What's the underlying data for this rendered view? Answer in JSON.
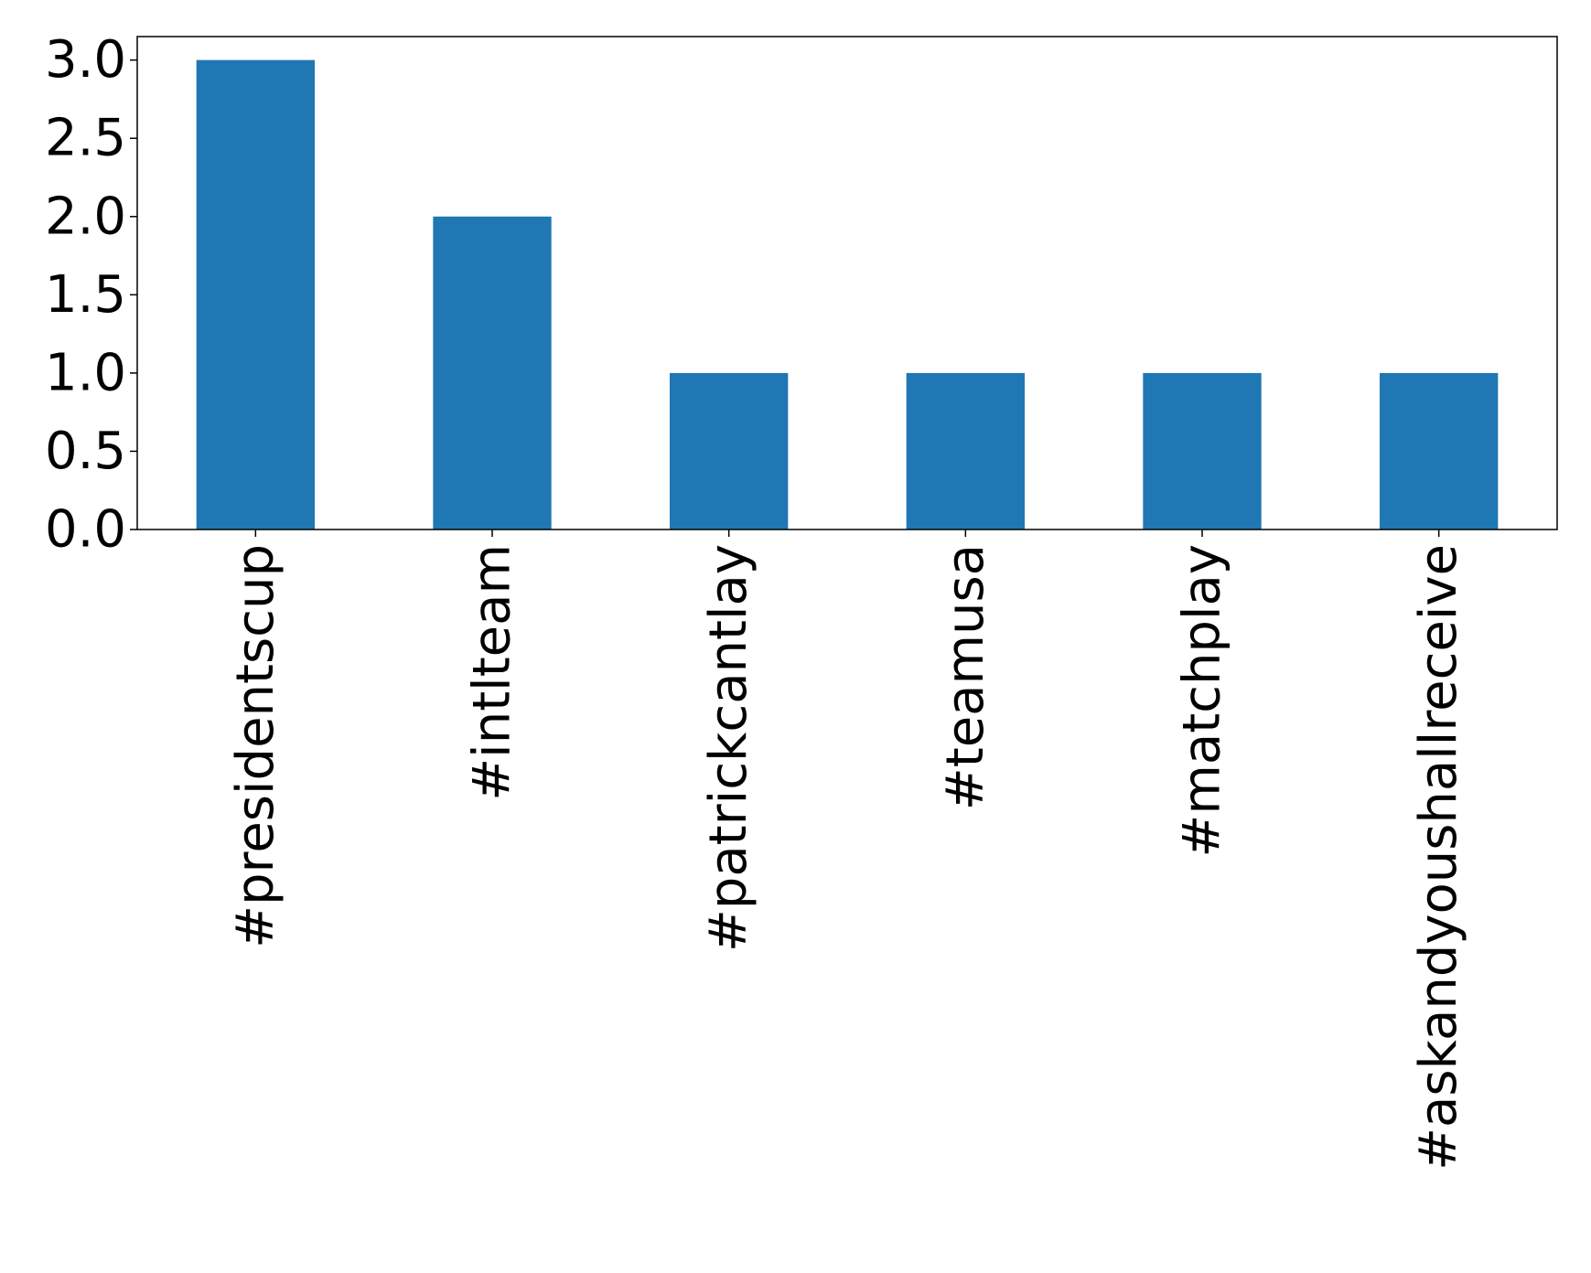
{
  "chart_data": {
    "type": "bar",
    "categories": [
      "#presidentscup",
      "#intlteam",
      "#patrickcantlay",
      "#teamusa",
      "#matchplay",
      "#askandyoushallreceive"
    ],
    "values": [
      3,
      2,
      1,
      1,
      1,
      1
    ],
    "y_ticks": [
      "0.0",
      "0.5",
      "1.0",
      "1.5",
      "2.0",
      "2.5",
      "3.0"
    ],
    "ylim": [
      0,
      3.15
    ],
    "title": "",
    "xlabel": "",
    "ylabel": "",
    "grid": false,
    "legend": "none",
    "x_tick_rotation": "vertical",
    "bar_color": "#1f77b4"
  }
}
